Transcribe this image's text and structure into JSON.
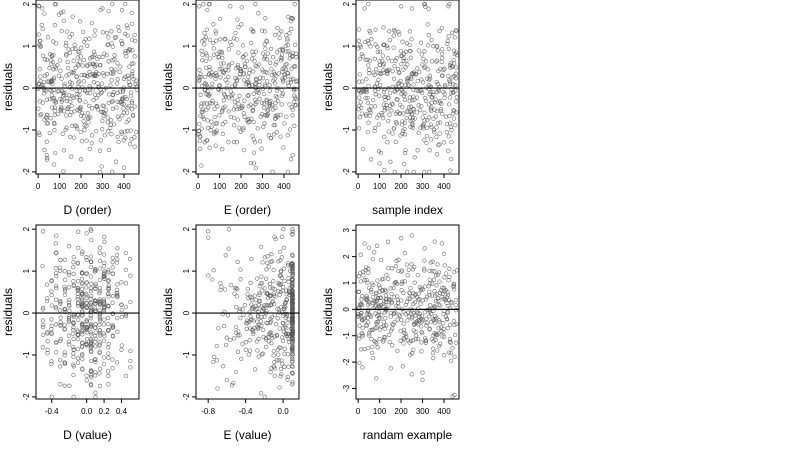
{
  "chart_data": [
    {
      "type": "scatter",
      "xlabel": "D (order)",
      "ylabel": "residuals",
      "xlim": [
        -10,
        470
      ],
      "ylim": [
        -2.05,
        2.1
      ],
      "xticks": [
        "0",
        "100",
        "200",
        "300",
        "400"
      ],
      "xtick_values": [
        0,
        100,
        200,
        300,
        400
      ],
      "yticks": [
        "-2",
        "-1",
        "0",
        "1",
        "2"
      ],
      "ytick_values": [
        -2,
        -1,
        0,
        1,
        2
      ],
      "hline": 0,
      "generator": {
        "kind": "index",
        "n": 450,
        "xmin": 0,
        "xmax": 460,
        "sd": 0.8,
        "clip": 2.0,
        "seed": 11
      },
      "points": [
        [
          5,
          1.95
        ],
        [
          20,
          1.9
        ],
        [
          40,
          -1.6
        ],
        [
          80,
          -1.55
        ],
        [
          200,
          -1.7
        ],
        [
          300,
          1.9
        ],
        [
          400,
          -1.9
        ],
        [
          450,
          -1.4
        ],
        [
          120,
          1.6
        ],
        [
          250,
          1.55
        ]
      ]
    },
    {
      "type": "scatter",
      "xlabel": "E (order)",
      "ylabel": "residuals",
      "xlim": [
        -10,
        470
      ],
      "ylim": [
        -2.05,
        2.1
      ],
      "xticks": [
        "0",
        "100",
        "200",
        "300",
        "400"
      ],
      "xtick_values": [
        0,
        100,
        200,
        300,
        400
      ],
      "yticks": [
        "-2",
        "-1",
        "0",
        "1",
        "2"
      ],
      "ytick_values": [
        -2,
        -1,
        0,
        1,
        2
      ],
      "hline": 0,
      "generator": {
        "kind": "index",
        "n": 450,
        "xmin": 0,
        "xmax": 460,
        "sd": 0.8,
        "clip": 2.0,
        "seed": 23
      },
      "points": [
        [
          5,
          1.95
        ],
        [
          15,
          -1.85
        ],
        [
          150,
          1.95
        ],
        [
          260,
          -1.8
        ],
        [
          420,
          1.7
        ],
        [
          440,
          -1.6
        ]
      ]
    },
    {
      "type": "scatter",
      "xlabel": "sample index",
      "ylabel": "residuals",
      "xlim": [
        -10,
        470
      ],
      "ylim": [
        -2.05,
        2.1
      ],
      "xticks": [
        "0",
        "100",
        "200",
        "300",
        "400"
      ],
      "xtick_values": [
        0,
        100,
        200,
        300,
        400
      ],
      "yticks": [
        "-2",
        "-1",
        "0",
        "1",
        "2"
      ],
      "ytick_values": [
        -2,
        -1,
        0,
        1,
        2
      ],
      "hline": 0,
      "generator": {
        "kind": "index",
        "n": 450,
        "xmin": 0,
        "xmax": 460,
        "sd": 0.8,
        "clip": 2.0,
        "seed": 37
      },
      "points": [
        [
          30,
          1.9
        ],
        [
          200,
          1.95
        ],
        [
          250,
          1.9
        ],
        [
          60,
          -1.7
        ],
        [
          420,
          -1.5
        ],
        [
          100,
          -1.8
        ]
      ]
    },
    {
      "type": "scatter",
      "xlabel": "D (value)",
      "ylabel": "residuals",
      "xlim": [
        -0.58,
        0.6
      ],
      "ylim": [
        -2.05,
        2.1
      ],
      "xticks": [
        "-0.4",
        "0.0",
        "0.2",
        "0.4"
      ],
      "xtick_values": [
        -0.4,
        0.0,
        0.2,
        0.4
      ],
      "yticks": [
        "-2",
        "-1",
        "0",
        "1",
        "2"
      ],
      "ytick_values": [
        -2,
        -1,
        0,
        1,
        2
      ],
      "hline": 0,
      "generator": {
        "kind": "discrete",
        "n": 450,
        "levels": [
          -0.5,
          -0.45,
          -0.4,
          -0.35,
          -0.3,
          -0.25,
          -0.2,
          -0.15,
          -0.1,
          -0.05,
          0,
          0.05,
          0.1,
          0.15,
          0.2,
          0.25,
          0.3,
          0.35,
          0.4,
          0.45,
          0.5
        ],
        "weights": [
          1,
          1,
          2,
          2,
          3,
          3,
          4,
          5,
          6,
          7,
          8,
          8,
          7,
          6,
          5,
          4,
          3,
          2,
          2,
          1,
          1
        ],
        "jitter": 0.004,
        "sd": 0.8,
        "clip": 2.0,
        "seed": 53
      },
      "points": [
        [
          -0.5,
          1.95
        ],
        [
          -0.3,
          -1.7
        ],
        [
          0.0,
          1.9
        ],
        [
          0.1,
          -1.9
        ],
        [
          0.45,
          -1.5
        ]
      ]
    },
    {
      "type": "scatter",
      "xlabel": "E (value)",
      "ylabel": "residuals",
      "xlim": [
        -0.93,
        0.17
      ],
      "ylim": [
        -2.05,
        2.1
      ],
      "xticks": [
        "-0.8",
        "-0.4",
        "0.0"
      ],
      "xtick_values": [
        -0.8,
        -0.4,
        0.0
      ],
      "yticks": [
        "-2",
        "-1",
        "0",
        "1",
        "2"
      ],
      "ytick_values": [
        -2,
        -1,
        0,
        1,
        2
      ],
      "hline": 0,
      "generator": {
        "kind": "skewed",
        "n": 300,
        "xmin": -0.85,
        "xmax": 0.1,
        "sd": 0.8,
        "clip": 2.0,
        "seed": 71,
        "cluster_x": 0.1,
        "cluster_n": 160,
        "cluster_spread": 0.004
      },
      "points": [
        [
          -0.8,
          1.95
        ],
        [
          -0.8,
          1.8
        ],
        [
          -0.6,
          -1.6
        ],
        [
          -0.7,
          -1.8
        ],
        [
          0.1,
          2.0
        ],
        [
          0.1,
          -1.7
        ]
      ]
    },
    {
      "type": "scatter",
      "xlabel": "randam example",
      "ylabel": "residuals",
      "xlim": [
        -10,
        470
      ],
      "ylim": [
        -3.4,
        3.2
      ],
      "xticks": [
        "0",
        "100",
        "200",
        "300",
        "400"
      ],
      "xtick_values": [
        0,
        100,
        200,
        300,
        400
      ],
      "yticks": [
        "-3",
        "-2",
        "-1",
        "0",
        "1",
        "2",
        "3"
      ],
      "ytick_values": [
        -3,
        -2,
        -1,
        0,
        1,
        2,
        3
      ],
      "hline": 0,
      "generator": {
        "kind": "index",
        "n": 450,
        "xmin": 0,
        "xmax": 460,
        "sd": 1.0,
        "clip": 3.3,
        "seed": 89
      },
      "points": [
        [
          250,
          2.8
        ],
        [
          200,
          2.7
        ],
        [
          30,
          2.5
        ],
        [
          440,
          -3.3
        ],
        [
          20,
          -2.2
        ],
        [
          300,
          -2.4
        ]
      ]
    }
  ]
}
